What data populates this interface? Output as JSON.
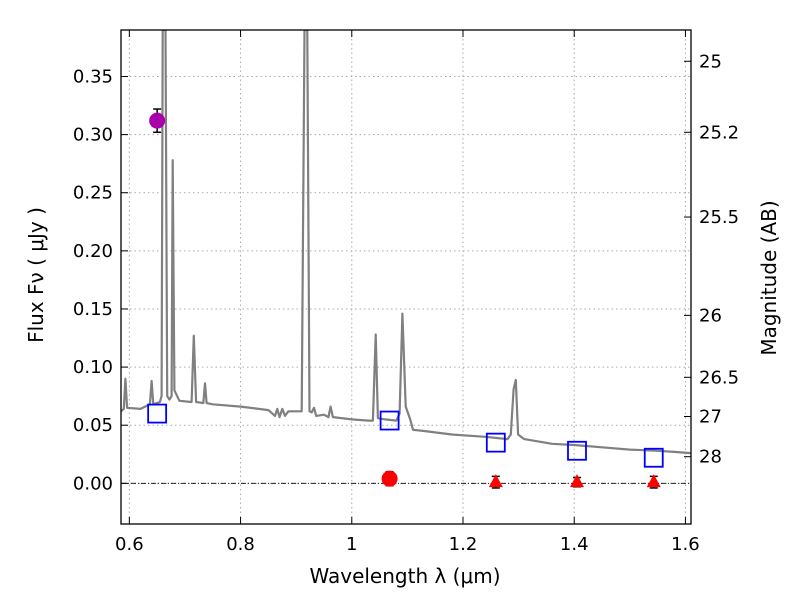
{
  "chart_data": {
    "type": "line",
    "xlabel": "Wavelength  λ (μm)",
    "ylabel": "Flux  Fν  ( μJy )",
    "ylabel_right": "Magnitude (AB)",
    "xlim": [
      0.585,
      1.61
    ],
    "ylim": [
      -0.035,
      0.39
    ],
    "grid": true,
    "x_ticks": [
      {
        "value": 0.6,
        "label": "0.6"
      },
      {
        "value": 0.8,
        "label": "0.8"
      },
      {
        "value": 1.0,
        "label": "1"
      },
      {
        "value": 1.2,
        "label": "1.2"
      },
      {
        "value": 1.4,
        "label": "1.4"
      },
      {
        "value": 1.6,
        "label": "1.6"
      }
    ],
    "y_ticks": [
      {
        "value": 0.0,
        "label": "0.00"
      },
      {
        "value": 0.05,
        "label": "0.05"
      },
      {
        "value": 0.1,
        "label": "0.10"
      },
      {
        "value": 0.15,
        "label": "0.15"
      },
      {
        "value": 0.2,
        "label": "0.20"
      },
      {
        "value": 0.25,
        "label": "0.25"
      },
      {
        "value": 0.3,
        "label": "0.30"
      },
      {
        "value": 0.35,
        "label": "0.35"
      }
    ],
    "right_ticks": [
      {
        "flux": 0.3631,
        "label": "25"
      },
      {
        "flux": 0.302,
        "label": "25.2"
      },
      {
        "flux": 0.2291,
        "label": "25.5"
      },
      {
        "flux": 0.1445,
        "label": "26"
      },
      {
        "flux": 0.0912,
        "label": "26.5"
      },
      {
        "flux": 0.0575,
        "label": "27"
      },
      {
        "flux": 0.0229,
        "label": "28"
      }
    ],
    "zero_line": 0.0,
    "colors": {
      "spectrum": "#808080",
      "model_marker": "#0000ff",
      "detection_optical": "#aa00aa",
      "detection_nir": "#ff0000",
      "errorbar": "#000000",
      "grid": "#aaaaaa"
    },
    "series": [
      {
        "name": "model-spectrum",
        "style": "line",
        "points": [
          [
            0.585,
            0.062
          ],
          [
            0.59,
            0.064
          ],
          [
            0.593,
            0.09
          ],
          [
            0.596,
            0.065
          ],
          [
            0.62,
            0.064
          ],
          [
            0.637,
            0.068
          ],
          [
            0.64,
            0.088
          ],
          [
            0.643,
            0.068
          ],
          [
            0.655,
            0.07
          ],
          [
            0.658,
            0.075
          ],
          [
            0.66,
            0.39
          ],
          [
            0.665,
            0.39
          ],
          [
            0.668,
            0.075
          ],
          [
            0.672,
            0.072
          ],
          [
            0.676,
            0.075
          ],
          [
            0.678,
            0.278
          ],
          [
            0.681,
            0.08
          ],
          [
            0.69,
            0.071
          ],
          [
            0.712,
            0.07
          ],
          [
            0.716,
            0.127
          ],
          [
            0.72,
            0.07
          ],
          [
            0.733,
            0.069
          ],
          [
            0.736,
            0.086
          ],
          [
            0.739,
            0.069
          ],
          [
            0.75,
            0.068
          ],
          [
            0.8,
            0.066
          ],
          [
            0.85,
            0.063
          ],
          [
            0.862,
            0.058
          ],
          [
            0.866,
            0.064
          ],
          [
            0.87,
            0.057
          ],
          [
            0.875,
            0.064
          ],
          [
            0.88,
            0.058
          ],
          [
            0.886,
            0.062
          ],
          [
            0.9,
            0.062
          ],
          [
            0.91,
            0.062
          ],
          [
            0.915,
            0.39
          ],
          [
            0.92,
            0.39
          ],
          [
            0.924,
            0.062
          ],
          [
            0.928,
            0.061
          ],
          [
            0.932,
            0.065
          ],
          [
            0.936,
            0.058
          ],
          [
            0.95,
            0.059
          ],
          [
            0.958,
            0.057
          ],
          [
            0.962,
            0.066
          ],
          [
            0.966,
            0.057
          ],
          [
            1.0,
            0.055
          ],
          [
            1.03,
            0.054
          ],
          [
            1.038,
            0.054
          ],
          [
            1.043,
            0.128
          ],
          [
            1.047,
            0.056
          ],
          [
            1.06,
            0.055
          ],
          [
            1.08,
            0.054
          ],
          [
            1.086,
            0.06
          ],
          [
            1.091,
            0.146
          ],
          [
            1.097,
            0.066
          ],
          [
            1.105,
            0.055
          ],
          [
            1.11,
            0.046
          ],
          [
            1.13,
            0.045
          ],
          [
            1.18,
            0.042
          ],
          [
            1.24,
            0.04
          ],
          [
            1.28,
            0.038
          ],
          [
            1.286,
            0.042
          ],
          [
            1.291,
            0.081
          ],
          [
            1.295,
            0.089
          ],
          [
            1.299,
            0.042
          ],
          [
            1.31,
            0.038
          ],
          [
            1.36,
            0.034
          ],
          [
            1.4,
            0.033
          ],
          [
            1.45,
            0.031
          ],
          [
            1.5,
            0.029
          ],
          [
            1.55,
            0.028
          ],
          [
            1.58,
            0.027
          ],
          [
            1.61,
            0.026
          ]
        ]
      },
      {
        "name": "model-photometry",
        "style": "open-square",
        "points": [
          [
            0.65,
            0.06
          ],
          [
            1.068,
            0.054
          ],
          [
            1.259,
            0.035
          ],
          [
            1.405,
            0.028
          ],
          [
            1.543,
            0.022
          ]
        ]
      },
      {
        "name": "observed-optical",
        "style": "filled-circle",
        "points": [
          [
            0.65,
            0.312,
            0.01
          ]
        ]
      },
      {
        "name": "observed-nir-detection",
        "style": "filled-circle",
        "points": [
          [
            1.068,
            0.004,
            0.006
          ]
        ]
      },
      {
        "name": "observed-nir-limits",
        "style": "filled-triangle",
        "points": [
          [
            1.259,
            0.001,
            0.005
          ],
          [
            1.405,
            0.001,
            0.004
          ],
          [
            1.543,
            0.001,
            0.005
          ]
        ]
      }
    ]
  }
}
